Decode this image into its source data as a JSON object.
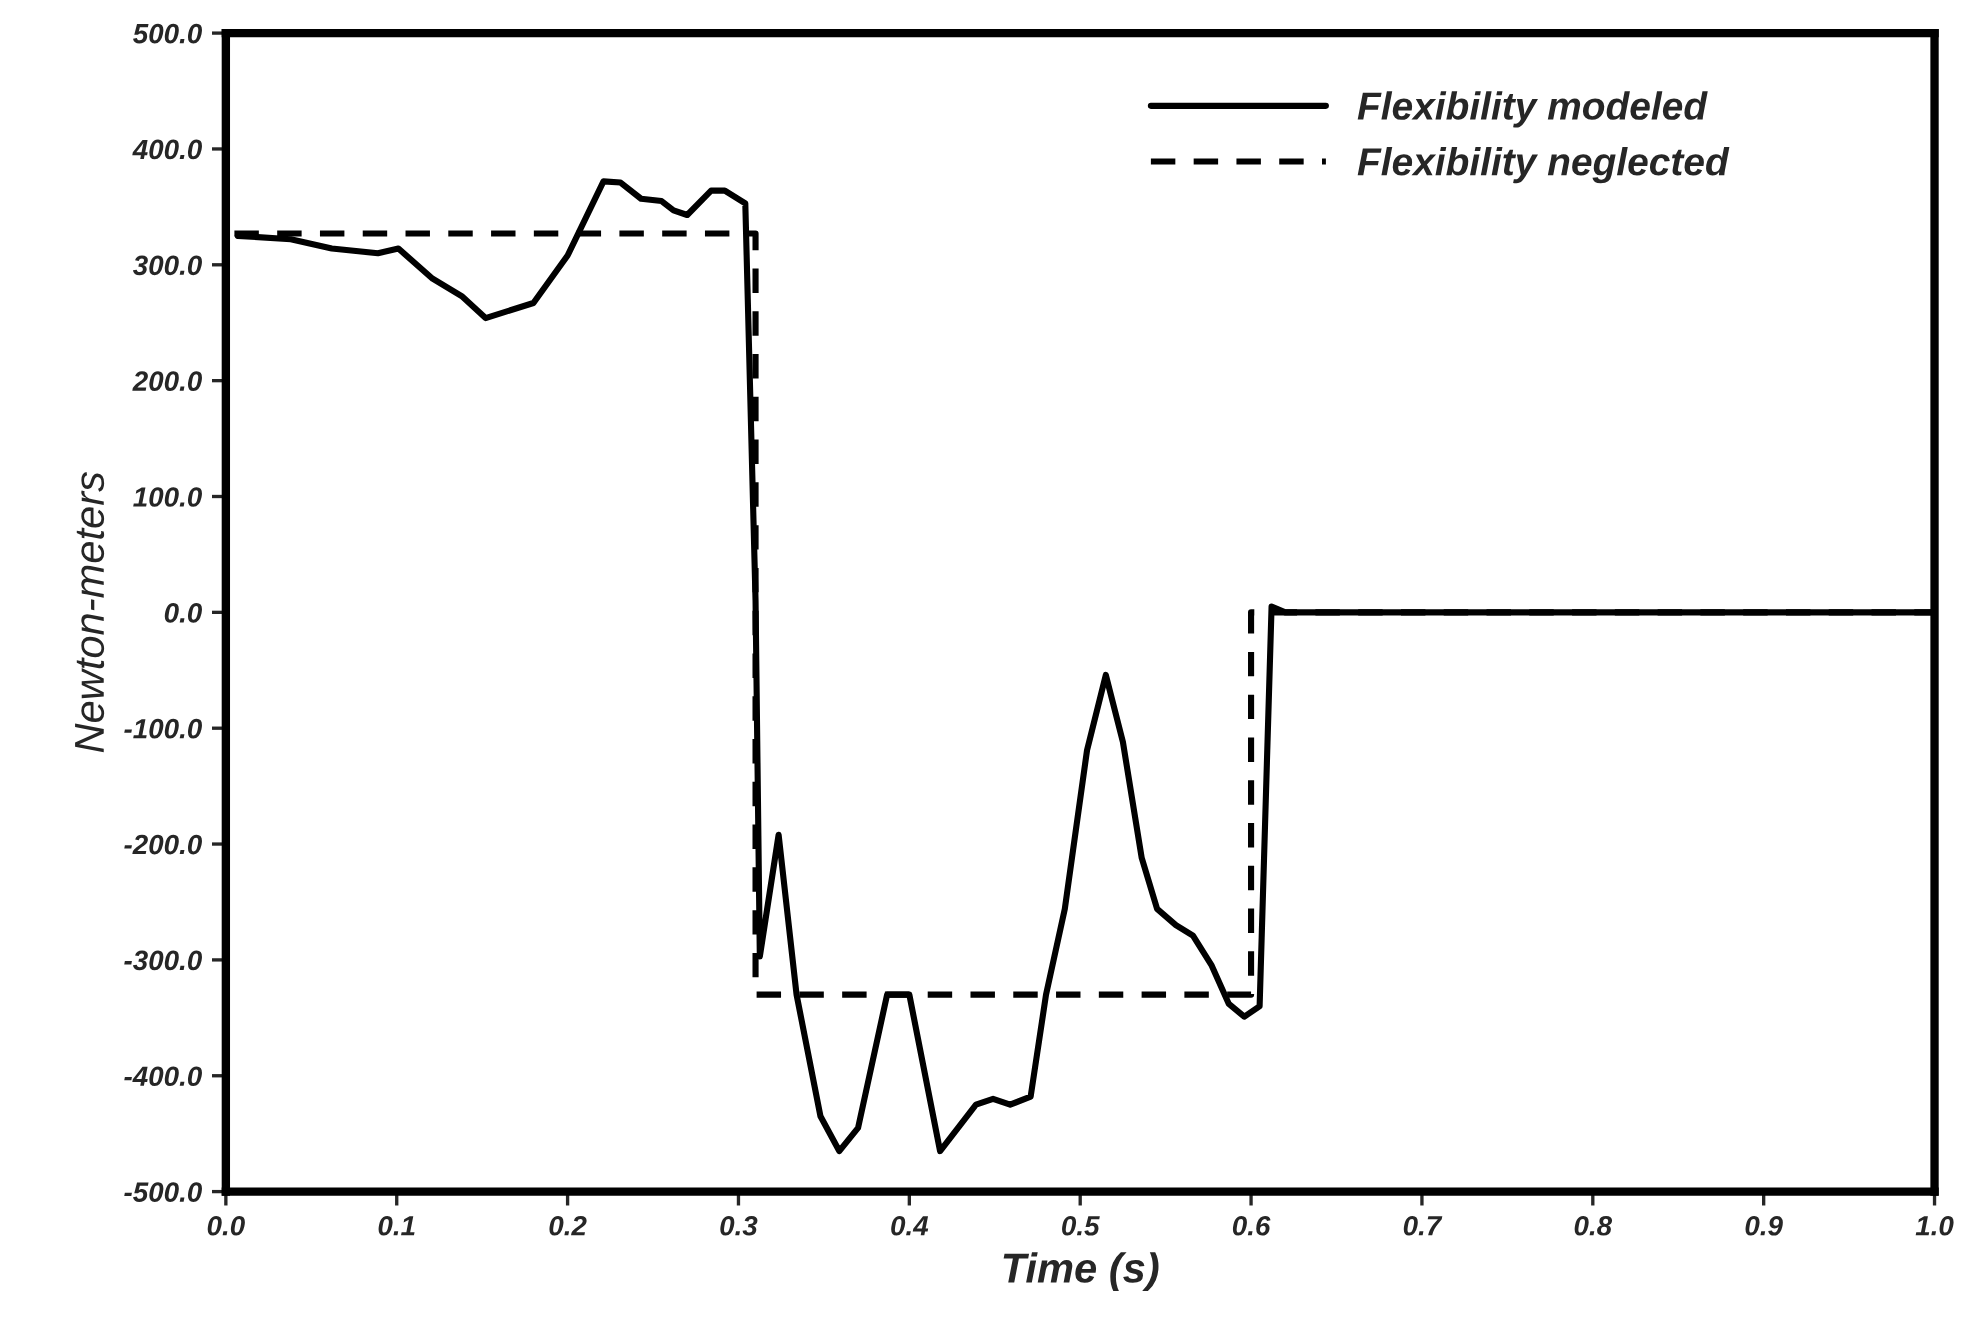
{
  "chart_data": {
    "type": "line",
    "xlabel": "Time (s)",
    "ylabel": "Newton-meters",
    "xlim": [
      0,
      1
    ],
    "ylim": [
      -500,
      500
    ],
    "xticks": [
      {
        "value": 0,
        "label": "0.0"
      },
      {
        "value": 0.1,
        "label": "0.1"
      },
      {
        "value": 0.2,
        "label": "0.2"
      },
      {
        "value": 0.3,
        "label": "0.3"
      },
      {
        "value": 0.4,
        "label": "0.4"
      },
      {
        "value": 0.5,
        "label": "0.5"
      },
      {
        "value": 0.6,
        "label": "0.6"
      },
      {
        "value": 0.7,
        "label": "0.7"
      },
      {
        "value": 0.8,
        "label": "0.8"
      },
      {
        "value": 0.9,
        "label": "0.9"
      },
      {
        "value": 1,
        "label": "1.0"
      }
    ],
    "yticks": [
      {
        "value": -500,
        "label": "-500.0"
      },
      {
        "value": -400,
        "label": "-400.0"
      },
      {
        "value": -300,
        "label": "-300.0"
      },
      {
        "value": -200,
        "label": "-200.0"
      },
      {
        "value": -100,
        "label": "-100.0"
      },
      {
        "value": 0,
        "label": "0.0"
      },
      {
        "value": 100,
        "label": "100.0"
      },
      {
        "value": 200,
        "label": "200.0"
      },
      {
        "value": 300,
        "label": "300.0"
      },
      {
        "value": 400,
        "label": "400.0"
      },
      {
        "value": 500,
        "label": "500.0"
      }
    ],
    "grid": false,
    "legend": "top right",
    "marker": "none",
    "series": [
      {
        "name": "Flexibility modeled",
        "color": "#000000",
        "line_style": "solid",
        "x": [
          0.007,
          0.038,
          0.062,
          0.089,
          0.101,
          0.121,
          0.138,
          0.152,
          0.18,
          0.2,
          0.221,
          0.231,
          0.243,
          0.255,
          0.262,
          0.27,
          0.284,
          0.292,
          0.304,
          0.31,
          0.3125,
          0.3235,
          0.334,
          0.348,
          0.359,
          0.37,
          0.387,
          0.4,
          0.418,
          0.439,
          0.449,
          0.459,
          0.471,
          0.48,
          0.491,
          0.504,
          0.515,
          0.525,
          0.536,
          0.545,
          0.556,
          0.566,
          0.577,
          0.587,
          0.596,
          0.605,
          0.612,
          0.62,
          1.0
        ],
        "values": [
          325,
          322,
          314,
          310,
          314,
          288,
          273,
          254,
          267,
          308,
          372,
          371,
          357,
          355,
          347,
          343,
          364,
          364,
          353,
          10,
          -297,
          -192,
          -330,
          -435,
          -465,
          -445,
          -330,
          -330,
          -465,
          -425,
          -420,
          -425,
          -418,
          -330,
          -256,
          -119,
          -54,
          -112,
          -212,
          -256,
          -270,
          -279,
          -305,
          -338,
          -349,
          -340,
          5,
          0,
          0
        ]
      },
      {
        "name": "Flexibility neglected",
        "color": "#000000",
        "line_style": "dashed",
        "x": [
          0.005,
          0.31,
          0.31,
          0.6,
          0.6,
          1.0
        ],
        "values": [
          327,
          327,
          -330,
          -330,
          0,
          0
        ]
      }
    ]
  }
}
